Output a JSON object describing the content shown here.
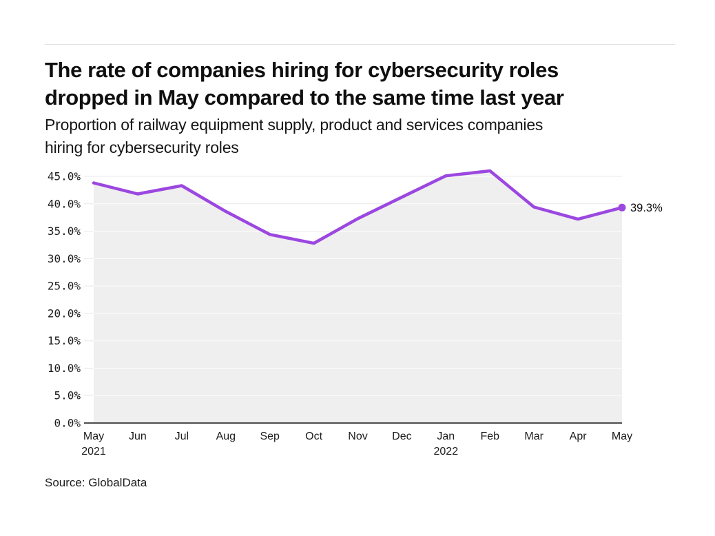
{
  "header": {
    "title_line1": "The rate of companies hiring for cybersecurity roles",
    "title_line2": "dropped in May compared to the same time last year",
    "subtitle_line1": "Proportion of railway equipment supply, product and services companies",
    "subtitle_line2": "hiring for cybersecurity roles"
  },
  "source": "Source: GlobalData",
  "chart_data": {
    "type": "area",
    "title": "The rate of companies hiring for cybersecurity roles dropped in May compared to the same time last year",
    "subtitle": "Proportion of railway equipment supply, product and services companies hiring for cybersecurity roles",
    "categories": [
      {
        "label": "May",
        "sublabel": "2021"
      },
      {
        "label": "Jun"
      },
      {
        "label": "Jul"
      },
      {
        "label": "Aug"
      },
      {
        "label": "Sep"
      },
      {
        "label": "Oct"
      },
      {
        "label": "Nov"
      },
      {
        "label": "Dec"
      },
      {
        "label": "Jan",
        "sublabel": "2022"
      },
      {
        "label": "Feb"
      },
      {
        "label": "Mar"
      },
      {
        "label": "Apr"
      },
      {
        "label": "May"
      }
    ],
    "values": [
      43.8,
      41.8,
      43.3,
      38.6,
      34.4,
      32.8,
      37.3,
      41.2,
      45.1,
      46.0,
      39.4,
      37.2,
      39.3
    ],
    "unit": "%",
    "end_label": "39.3%",
    "y_axis": {
      "ticks": [
        {
          "value": 45,
          "label": "45.0%"
        },
        {
          "value": 40,
          "label": "40.0%"
        },
        {
          "value": 35,
          "label": "35.0%"
        },
        {
          "value": 30,
          "label": "30.0%"
        },
        {
          "value": 25,
          "label": "25.0%"
        },
        {
          "value": 20,
          "label": "20.0%"
        },
        {
          "value": 15,
          "label": "15.0%"
        },
        {
          "value": 10,
          "label": "10.0%"
        },
        {
          "value": 5,
          "label": "5.0%"
        },
        {
          "value": 0,
          "label": "0.0%"
        }
      ],
      "ylim": [
        0,
        47.5
      ]
    },
    "grid": true,
    "legend": "none",
    "colors": {
      "line": "#9b47e0",
      "fill": "#efefef",
      "grid": "#e8e8e8",
      "grid_on_fill": "#ffffff",
      "axis": "#4d4d4d",
      "text": "#1c1c1c"
    }
  }
}
